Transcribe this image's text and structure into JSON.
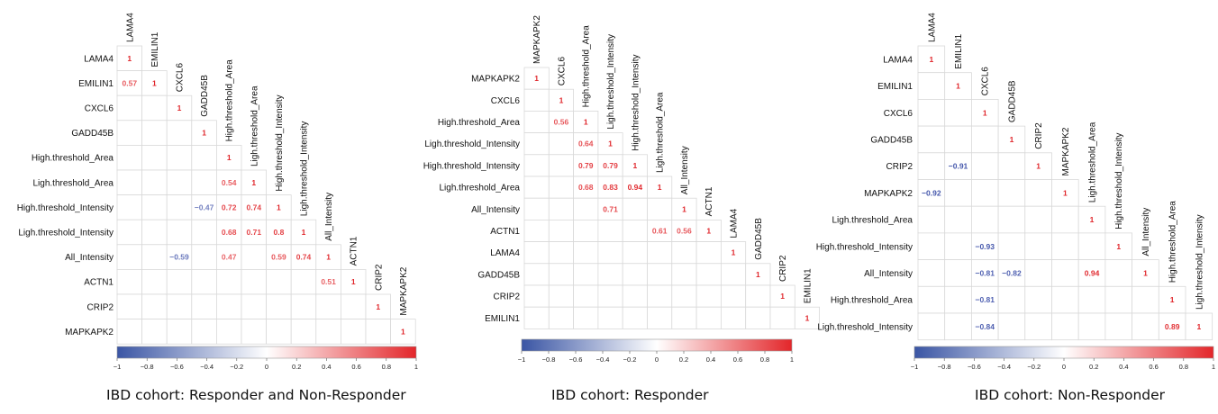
{
  "colors": {
    "low": "#3a55a4",
    "mid": "#ffffff",
    "high": "#e3262a",
    "negative_text": "#3c4fa8",
    "positive_text": "#e0262b"
  },
  "chart_data": [
    {
      "type": "heatmap",
      "subtype": "lower-triangle correlation matrix",
      "caption": "IBD cohort: Responder and Non-Responder",
      "labels": [
        "LAMA4",
        "EMILIN1",
        "CXCL6",
        "GADD45B",
        "High.threshold_Area",
        "Ligh.threshold_Area",
        "High.threshold_Intensity",
        "Ligh.threshold_Intensity",
        "All_Intensity",
        "ACTN1",
        "CRIP2",
        "MAPKAPK2"
      ],
      "cells": [
        {
          "row": "LAMA4",
          "col": "LAMA4",
          "value": 1
        },
        {
          "row": "EMILIN1",
          "col": "LAMA4",
          "value": 0.57
        },
        {
          "row": "EMILIN1",
          "col": "EMILIN1",
          "value": 1
        },
        {
          "row": "CXCL6",
          "col": "CXCL6",
          "value": 1
        },
        {
          "row": "GADD45B",
          "col": "GADD45B",
          "value": 1
        },
        {
          "row": "High.threshold_Area",
          "col": "High.threshold_Area",
          "value": 1
        },
        {
          "row": "Ligh.threshold_Area",
          "col": "High.threshold_Area",
          "value": 0.54
        },
        {
          "row": "Ligh.threshold_Area",
          "col": "Ligh.threshold_Area",
          "value": 1
        },
        {
          "row": "High.threshold_Intensity",
          "col": "GADD45B",
          "value": -0.47
        },
        {
          "row": "High.threshold_Intensity",
          "col": "High.threshold_Area",
          "value": 0.72
        },
        {
          "row": "High.threshold_Intensity",
          "col": "Ligh.threshold_Area",
          "value": 0.74
        },
        {
          "row": "High.threshold_Intensity",
          "col": "High.threshold_Intensity",
          "value": 1
        },
        {
          "row": "Ligh.threshold_Intensity",
          "col": "High.threshold_Area",
          "value": 0.68
        },
        {
          "row": "Ligh.threshold_Intensity",
          "col": "Ligh.threshold_Area",
          "value": 0.71
        },
        {
          "row": "Ligh.threshold_Intensity",
          "col": "High.threshold_Intensity",
          "value": 0.8
        },
        {
          "row": "Ligh.threshold_Intensity",
          "col": "Ligh.threshold_Intensity",
          "value": 1
        },
        {
          "row": "All_Intensity",
          "col": "CXCL6",
          "value": -0.59
        },
        {
          "row": "All_Intensity",
          "col": "High.threshold_Area",
          "value": 0.47
        },
        {
          "row": "All_Intensity",
          "col": "High.threshold_Intensity",
          "value": 0.59
        },
        {
          "row": "All_Intensity",
          "col": "Ligh.threshold_Intensity",
          "value": 0.74
        },
        {
          "row": "All_Intensity",
          "col": "All_Intensity",
          "value": 1
        },
        {
          "row": "ACTN1",
          "col": "All_Intensity",
          "value": 0.51
        },
        {
          "row": "ACTN1",
          "col": "ACTN1",
          "value": 1
        },
        {
          "row": "CRIP2",
          "col": "CRIP2",
          "value": 1
        },
        {
          "row": "MAPKAPK2",
          "col": "MAPKAPK2",
          "value": 1
        }
      ],
      "colorbar": {
        "range": [
          -1,
          1
        ],
        "ticks": [
          "-1",
          "-0.8",
          "-0.6",
          "-0.4",
          "-0.2",
          "0",
          "0.2",
          "0.4",
          "0.6",
          "0.8",
          "1"
        ]
      }
    },
    {
      "type": "heatmap",
      "subtype": "lower-triangle correlation matrix",
      "caption": "IBD cohort: Responder",
      "labels": [
        "MAPKAPK2",
        "CXCL6",
        "High.threshold_Area",
        "Ligh.threshold_Intensity",
        "High.threshold_Intensity",
        "Ligh.threshold_Area",
        "All_Intensity",
        "ACTN1",
        "LAMA4",
        "GADD45B",
        "CRIP2",
        "EMILIN1"
      ],
      "cells": [
        {
          "row": "MAPKAPK2",
          "col": "MAPKAPK2",
          "value": 1
        },
        {
          "row": "CXCL6",
          "col": "CXCL6",
          "value": 1
        },
        {
          "row": "High.threshold_Area",
          "col": "CXCL6",
          "value": 0.56
        },
        {
          "row": "High.threshold_Area",
          "col": "High.threshold_Area",
          "value": 1
        },
        {
          "row": "Ligh.threshold_Intensity",
          "col": "High.threshold_Area",
          "value": 0.64
        },
        {
          "row": "Ligh.threshold_Intensity",
          "col": "Ligh.threshold_Intensity",
          "value": 1
        },
        {
          "row": "High.threshold_Intensity",
          "col": "High.threshold_Area",
          "value": 0.79
        },
        {
          "row": "High.threshold_Intensity",
          "col": "Ligh.threshold_Intensity",
          "value": 0.79
        },
        {
          "row": "High.threshold_Intensity",
          "col": "High.threshold_Intensity",
          "value": 1
        },
        {
          "row": "Ligh.threshold_Area",
          "col": "High.threshold_Area",
          "value": 0.68
        },
        {
          "row": "Ligh.threshold_Area",
          "col": "Ligh.threshold_Intensity",
          "value": 0.83
        },
        {
          "row": "Ligh.threshold_Area",
          "col": "High.threshold_Intensity",
          "value": 0.94
        },
        {
          "row": "Ligh.threshold_Area",
          "col": "Ligh.threshold_Area",
          "value": 1
        },
        {
          "row": "All_Intensity",
          "col": "Ligh.threshold_Intensity",
          "value": 0.71
        },
        {
          "row": "All_Intensity",
          "col": "All_Intensity",
          "value": 1
        },
        {
          "row": "ACTN1",
          "col": "Ligh.threshold_Area",
          "value": 0.61
        },
        {
          "row": "ACTN1",
          "col": "All_Intensity",
          "value": 0.56
        },
        {
          "row": "ACTN1",
          "col": "ACTN1",
          "value": 1
        },
        {
          "row": "LAMA4",
          "col": "LAMA4",
          "value": 1
        },
        {
          "row": "GADD45B",
          "col": "GADD45B",
          "value": 1
        },
        {
          "row": "CRIP2",
          "col": "CRIP2",
          "value": 1
        },
        {
          "row": "EMILIN1",
          "col": "EMILIN1",
          "value": 1
        }
      ],
      "colorbar": {
        "range": [
          -1,
          1
        ],
        "ticks": [
          "-1",
          "-0.8",
          "-0.6",
          "-0.4",
          "-0.2",
          "0",
          "0.2",
          "0.4",
          "0.6",
          "0.8",
          "1"
        ]
      }
    },
    {
      "type": "heatmap",
      "subtype": "lower-triangle correlation matrix",
      "caption": "IBD cohort: Non-Responder",
      "labels": [
        "LAMA4",
        "EMILIN1",
        "CXCL6",
        "GADD45B",
        "CRIP2",
        "MAPKAPK2",
        "Ligh.threshold_Area",
        "High.threshold_Intensity",
        "All_Intensity",
        "High.threshold_Area",
        "Ligh.threshold_Intensity"
      ],
      "cells": [
        {
          "row": "LAMA4",
          "col": "LAMA4",
          "value": 1
        },
        {
          "row": "EMILIN1",
          "col": "EMILIN1",
          "value": 1
        },
        {
          "row": "CXCL6",
          "col": "CXCL6",
          "value": 1
        },
        {
          "row": "GADD45B",
          "col": "GADD45B",
          "value": 1
        },
        {
          "row": "CRIP2",
          "col": "EMILIN1",
          "value": -0.91
        },
        {
          "row": "CRIP2",
          "col": "CRIP2",
          "value": 1
        },
        {
          "row": "MAPKAPK2",
          "col": "LAMA4",
          "value": -0.92
        },
        {
          "row": "MAPKAPK2",
          "col": "MAPKAPK2",
          "value": 1
        },
        {
          "row": "Ligh.threshold_Area",
          "col": "Ligh.threshold_Area",
          "value": 1
        },
        {
          "row": "High.threshold_Intensity",
          "col": "CXCL6",
          "value": -0.93
        },
        {
          "row": "High.threshold_Intensity",
          "col": "High.threshold_Intensity",
          "value": 1
        },
        {
          "row": "All_Intensity",
          "col": "CXCL6",
          "value": -0.81
        },
        {
          "row": "All_Intensity",
          "col": "GADD45B",
          "value": -0.82
        },
        {
          "row": "All_Intensity",
          "col": "Ligh.threshold_Area",
          "value": 0.94
        },
        {
          "row": "All_Intensity",
          "col": "All_Intensity",
          "value": 1
        },
        {
          "row": "High.threshold_Area",
          "col": "CXCL6",
          "value": -0.81
        },
        {
          "row": "High.threshold_Area",
          "col": "High.threshold_Area",
          "value": 1
        },
        {
          "row": "Ligh.threshold_Intensity",
          "col": "CXCL6",
          "value": -0.84
        },
        {
          "row": "Ligh.threshold_Intensity",
          "col": "High.threshold_Area",
          "value": 0.89
        },
        {
          "row": "Ligh.threshold_Intensity",
          "col": "Ligh.threshold_Intensity",
          "value": 1
        }
      ],
      "colorbar": {
        "range": [
          -1,
          1
        ],
        "ticks": [
          "-1",
          "-0.8",
          "-0.6",
          "-0.4",
          "-0.2",
          "0",
          "0.2",
          "0.4",
          "0.6",
          "0.8",
          "1"
        ]
      }
    }
  ]
}
